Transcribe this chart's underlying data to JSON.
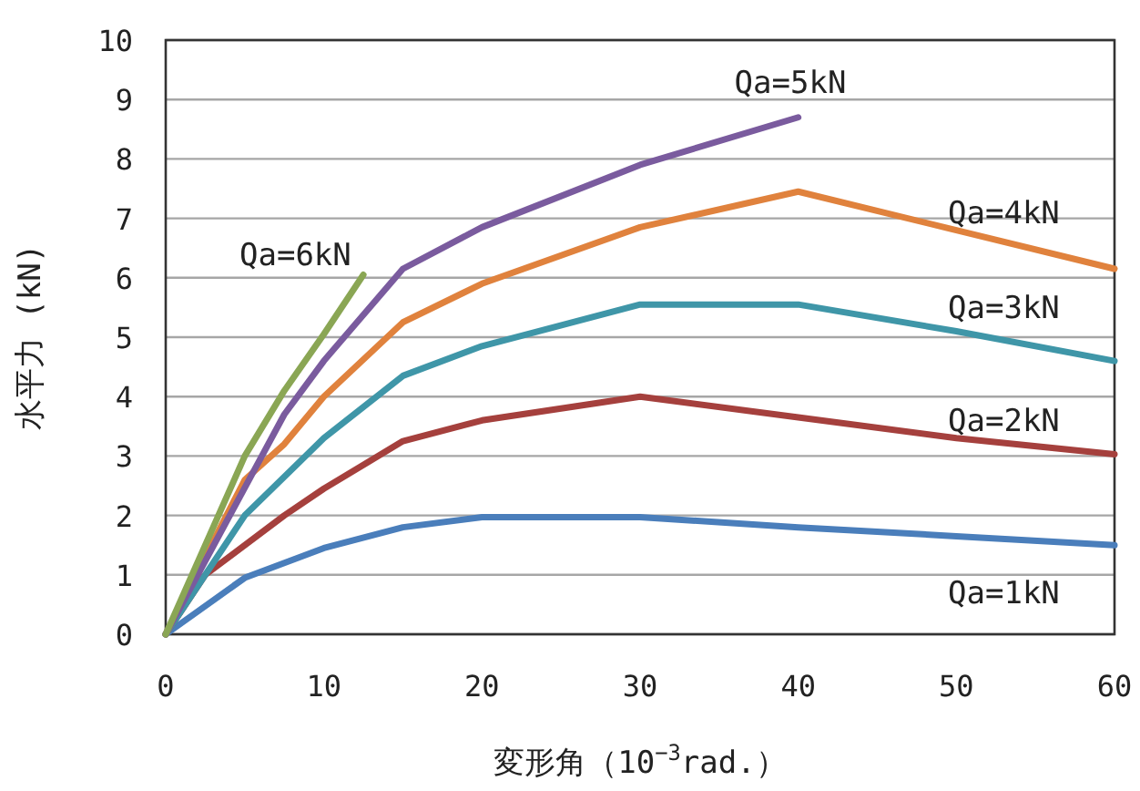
{
  "chart_data": {
    "type": "line",
    "xlabel": "変形角（10$^{−3}$rad.）",
    "ylabel": "水平力 (kN)",
    "xlim": [
      0,
      60
    ],
    "ylim": [
      0,
      10
    ],
    "xticks": [
      0,
      10,
      20,
      30,
      40,
      50,
      60
    ],
    "yticks": [
      0,
      1,
      2,
      3,
      4,
      5,
      6,
      7,
      8,
      9,
      10
    ],
    "grid": "y",
    "marker": "none",
    "line_style": "solid",
    "series": [
      {
        "name": "Qa=1kN",
        "color": "#4a7ebb",
        "x": [
          0,
          5,
          7.5,
          10,
          15,
          20,
          30,
          40,
          50,
          60
        ],
        "values": [
          0,
          0.95,
          1.2,
          1.45,
          1.8,
          1.97,
          1.97,
          1.8,
          1.65,
          1.5
        ]
      },
      {
        "name": "Qa=2kN",
        "color": "#a5403d",
        "x": [
          0,
          2.5,
          7.5,
          10,
          15,
          20,
          30,
          40,
          50,
          60
        ],
        "values": [
          0,
          1.0,
          2.0,
          2.45,
          3.25,
          3.6,
          4.0,
          3.65,
          3.3,
          3.03
        ]
      },
      {
        "name": "Qa=3kN",
        "color": "#3f96a8",
        "x": [
          0,
          5,
          10,
          15,
          20,
          30,
          40,
          50,
          60
        ],
        "values": [
          0,
          2.0,
          3.3,
          4.35,
          4.85,
          5.55,
          5.55,
          5.1,
          4.6
        ]
      },
      {
        "name": "Qa=4kN",
        "color": "#e0823d",
        "x": [
          0,
          5,
          7.5,
          10,
          15,
          20,
          30,
          40,
          50,
          60
        ],
        "values": [
          0,
          2.6,
          3.2,
          4.0,
          5.25,
          5.9,
          6.85,
          7.45,
          6.8,
          6.15
        ]
      },
      {
        "name": "Qa=5kN",
        "color": "#7a5b9e",
        "x": [
          0,
          7.5,
          10,
          15,
          20,
          30,
          40
        ],
        "values": [
          0,
          3.7,
          4.6,
          6.15,
          6.85,
          7.9,
          8.7
        ]
      },
      {
        "name": "Qa=6kN",
        "color": "#8aa654",
        "x": [
          0,
          5,
          7.5,
          10,
          12.5
        ],
        "values": [
          0,
          3.0,
          4.1,
          5.05,
          6.05
        ]
      }
    ]
  }
}
